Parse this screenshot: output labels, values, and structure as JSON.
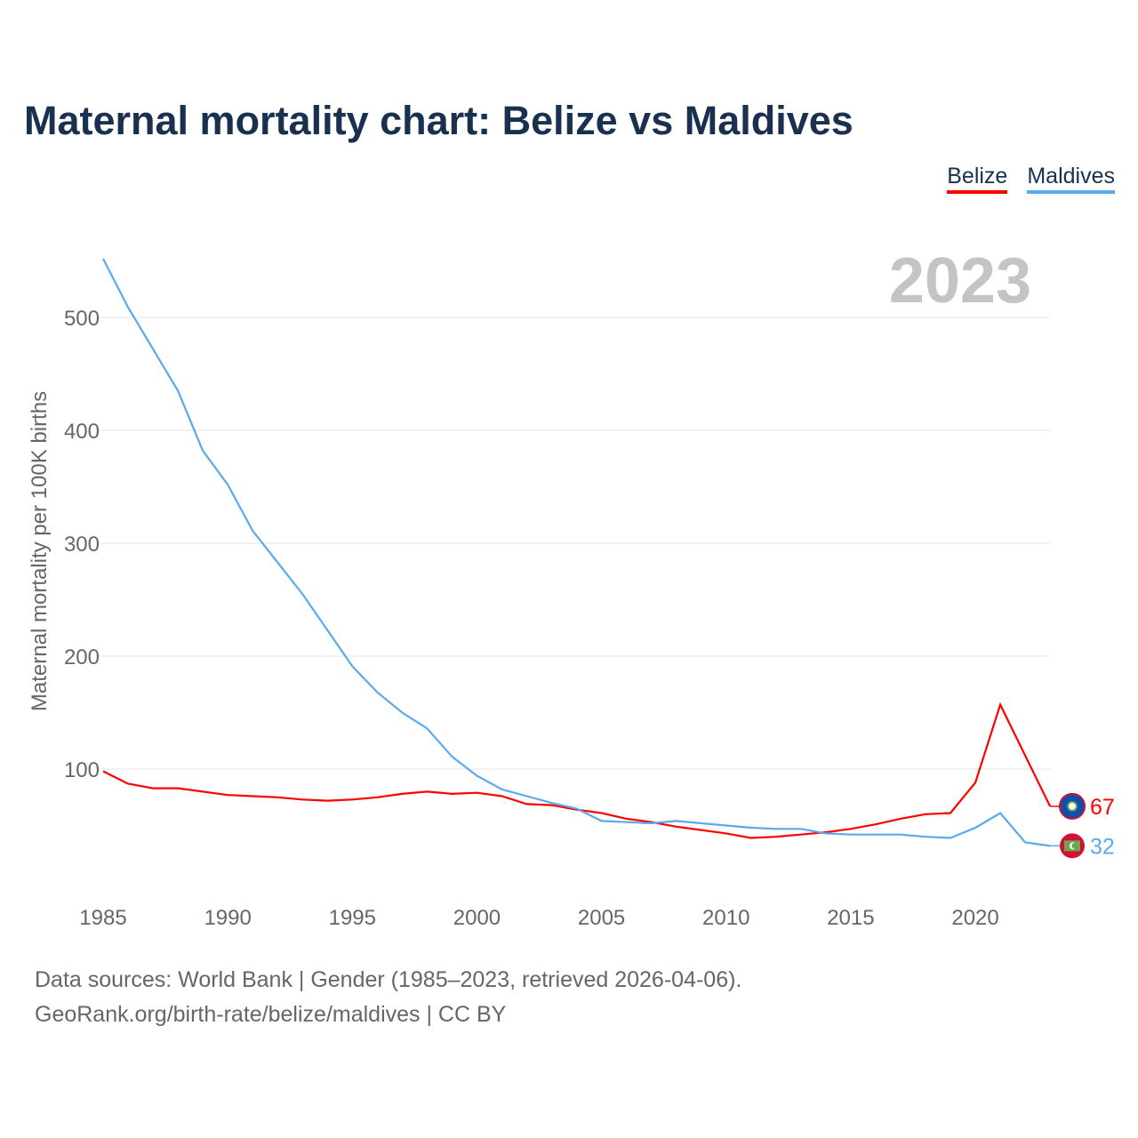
{
  "title": "Maternal mortality chart: Belize vs Maldives",
  "footer": {
    "line1": "Data sources: World Bank | Gender (1985–2023, retrieved 2026-04-06).",
    "line2": "GeoRank.org/birth-rate/belize/maldives | CC BY"
  },
  "chart_data": {
    "type": "line",
    "title": "Maternal mortality chart: Belize vs Maldives",
    "year_label": "2023",
    "ylabel": "Maternal mortality per 100K births",
    "xlabel": "",
    "xlim": [
      1985,
      2023
    ],
    "ylim": [
      0,
      560
    ],
    "x_ticks": [
      1985,
      1990,
      1995,
      2000,
      2005,
      2010,
      2015,
      2020
    ],
    "y_ticks": [
      100,
      200,
      300,
      400,
      500
    ],
    "grid": true,
    "legend": "top-right",
    "x": [
      1985,
      1986,
      1987,
      1988,
      1989,
      1990,
      1991,
      1992,
      1993,
      1994,
      1995,
      1996,
      1997,
      1998,
      1999,
      2000,
      2001,
      2002,
      2003,
      2004,
      2005,
      2006,
      2007,
      2008,
      2009,
      2010,
      2011,
      2012,
      2013,
      2014,
      2015,
      2016,
      2017,
      2018,
      2019,
      2020,
      2021,
      2022,
      2023
    ],
    "series": [
      {
        "name": "Belize",
        "color": "#ff0000",
        "flag": "belize-flag",
        "end_label": "67",
        "values": [
          98,
          87,
          83,
          83,
          80,
          77,
          76,
          75,
          73,
          72,
          73,
          75,
          78,
          80,
          78,
          79,
          76,
          69,
          68,
          64,
          61,
          56,
          53,
          49,
          46,
          43,
          39,
          40,
          42,
          44,
          47,
          51,
          56,
          60,
          61,
          88,
          157,
          112,
          67
        ]
      },
      {
        "name": "Maldives",
        "color": "#5aa9ee",
        "flag": "maldives-flag",
        "end_label": "32",
        "values": [
          552,
          509,
          472,
          435,
          382,
          352,
          311,
          283,
          255,
          223,
          191,
          168,
          150,
          136,
          111,
          94,
          82,
          76,
          70,
          65,
          54,
          53,
          52,
          54,
          52,
          50,
          48,
          47,
          47,
          43,
          42,
          42,
          42,
          40,
          39,
          48,
          61,
          35,
          32
        ]
      }
    ]
  }
}
